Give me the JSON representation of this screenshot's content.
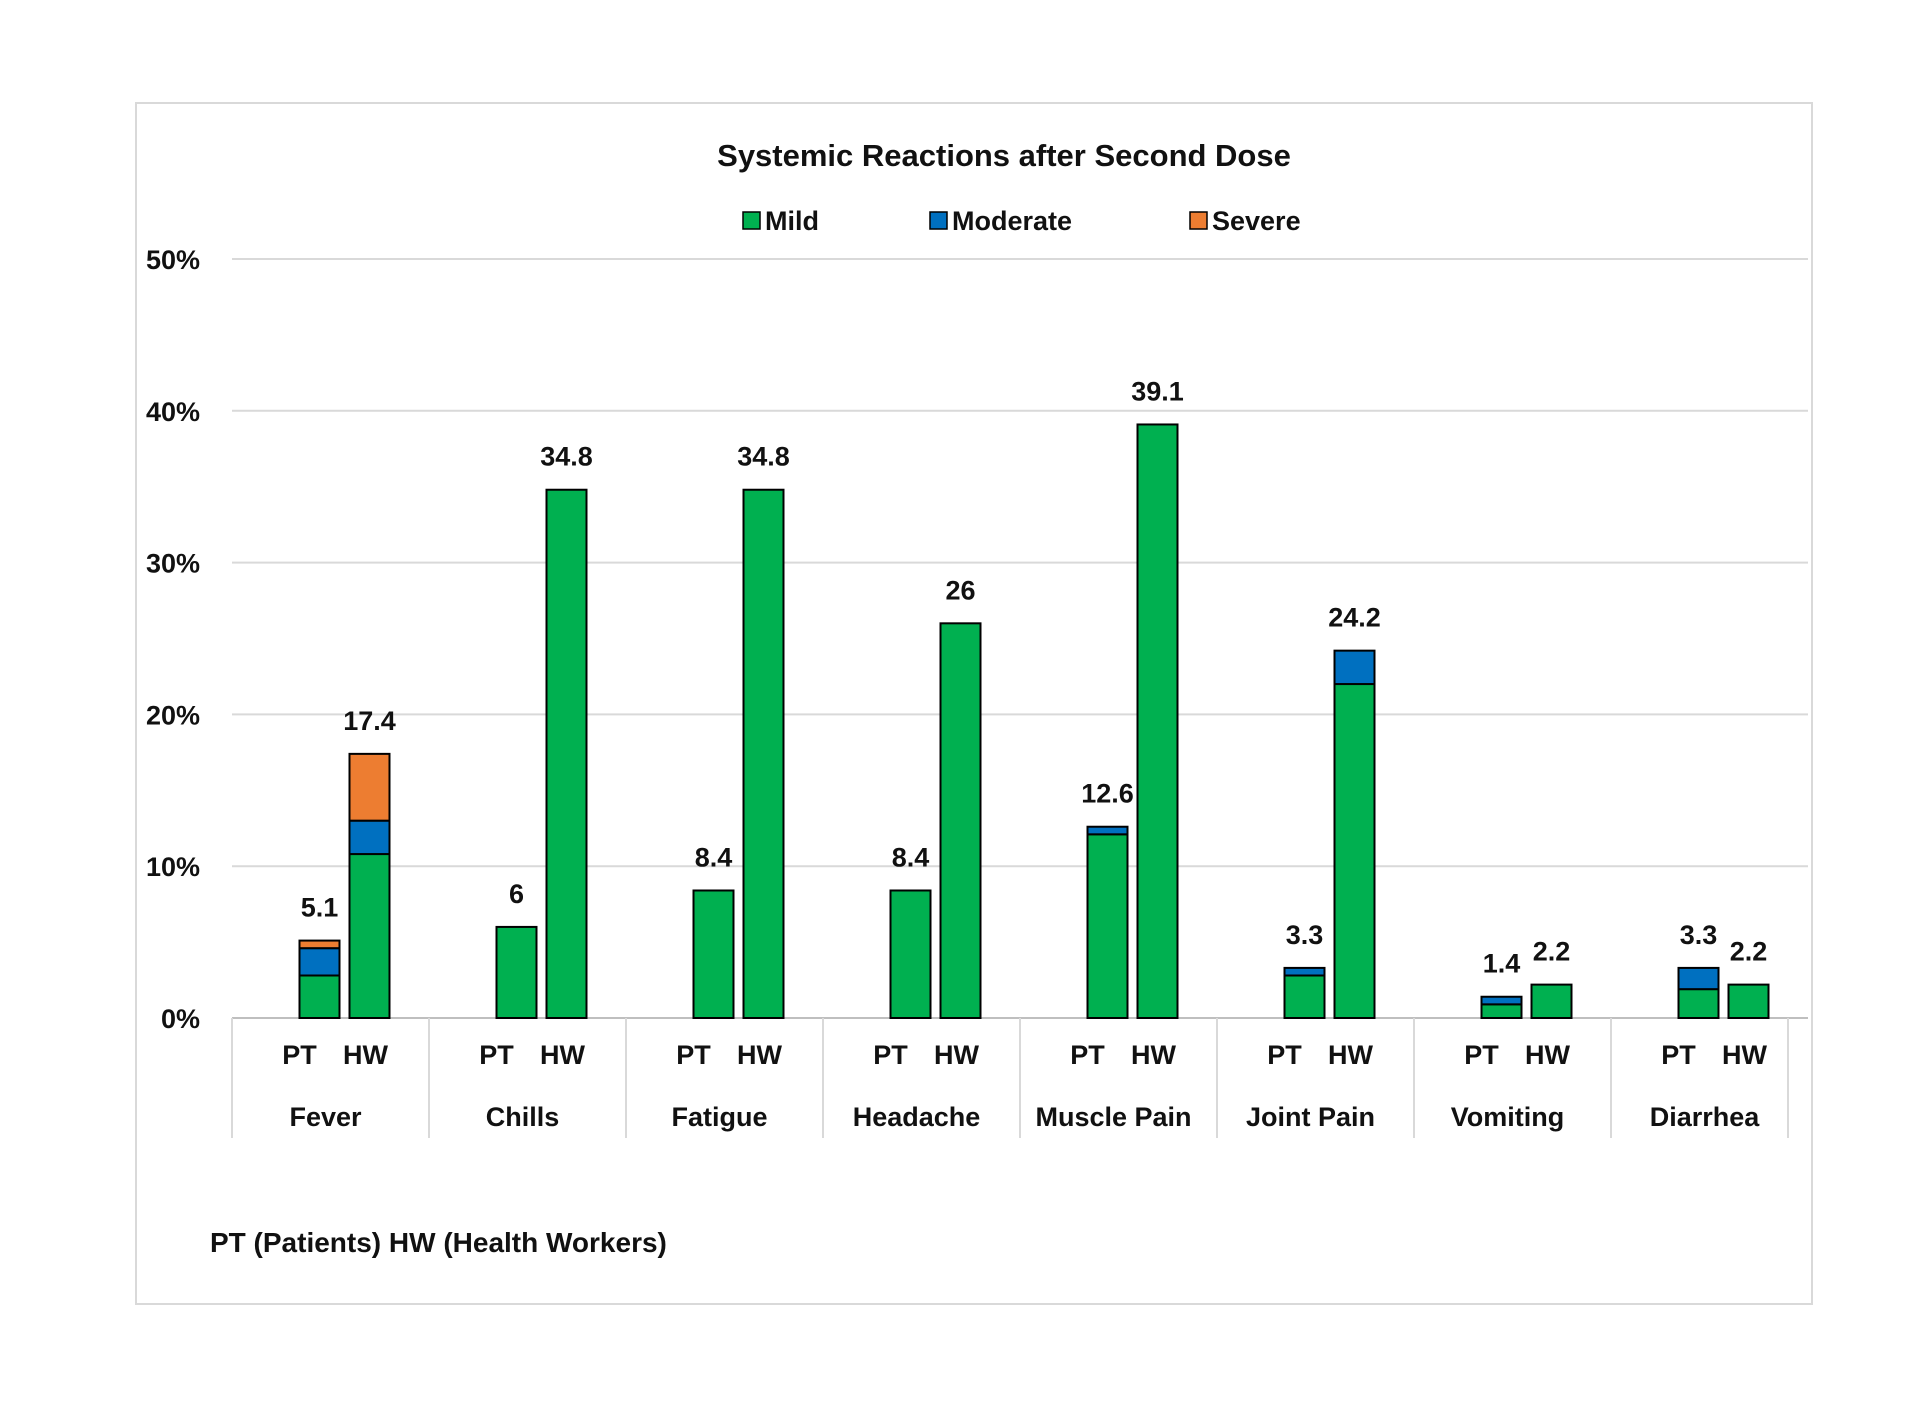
{
  "chart_data": {
    "type": "bar",
    "stacked": true,
    "title": "Systemic Reactions after Second Dose",
    "legend": {
      "placement": "top-center",
      "items": [
        {
          "name": "Mild",
          "color": "#00b050"
        },
        {
          "name": "Moderate",
          "color": "#0070c0"
        },
        {
          "name": "Severe",
          "color": "#ed7d31"
        }
      ]
    },
    "y_axis": {
      "ylim": [
        0,
        50
      ],
      "ticks": [
        0,
        10,
        20,
        30,
        40,
        50
      ],
      "tick_labels": [
        "0%",
        "10%",
        "20%",
        "30%",
        "40%",
        "50%"
      ],
      "grid": true
    },
    "categories": [
      "Fever",
      "Chills",
      "Fatigue",
      "Headache",
      "Muscle Pain",
      "Joint Pain",
      "Vomiting",
      "Diarrhea"
    ],
    "subcategories": [
      "PT",
      "HW"
    ],
    "groups": [
      {
        "category": "Fever",
        "bars": [
          {
            "sub": "PT",
            "mild": 2.8,
            "moderate": 1.8,
            "severe": 0.5,
            "total_label": "5.1"
          },
          {
            "sub": "HW",
            "mild": 10.8,
            "moderate": 2.2,
            "severe": 4.4,
            "total_label": "17.4"
          }
        ]
      },
      {
        "category": "Chills",
        "bars": [
          {
            "sub": "PT",
            "mild": 6.0,
            "moderate": 0,
            "severe": 0,
            "total_label": "6"
          },
          {
            "sub": "HW",
            "mild": 34.8,
            "moderate": 0,
            "severe": 0,
            "total_label": "34.8"
          }
        ]
      },
      {
        "category": "Fatigue",
        "bars": [
          {
            "sub": "PT",
            "mild": 8.4,
            "moderate": 0,
            "severe": 0,
            "total_label": "8.4"
          },
          {
            "sub": "HW",
            "mild": 34.8,
            "moderate": 0,
            "severe": 0,
            "total_label": "34.8"
          }
        ]
      },
      {
        "category": "Headache",
        "bars": [
          {
            "sub": "PT",
            "mild": 8.4,
            "moderate": 0,
            "severe": 0,
            "total_label": "8.4"
          },
          {
            "sub": "HW",
            "mild": 26.0,
            "moderate": 0,
            "severe": 0,
            "total_label": "26"
          }
        ]
      },
      {
        "category": "Muscle Pain",
        "bars": [
          {
            "sub": "PT",
            "mild": 12.1,
            "moderate": 0.5,
            "severe": 0,
            "total_label": "12.6"
          },
          {
            "sub": "HW",
            "mild": 39.1,
            "moderate": 0,
            "severe": 0,
            "total_label": "39.1"
          }
        ]
      },
      {
        "category": "Joint Pain",
        "bars": [
          {
            "sub": "PT",
            "mild": 2.8,
            "moderate": 0.5,
            "severe": 0,
            "total_label": "3.3"
          },
          {
            "sub": "HW",
            "mild": 22.0,
            "moderate": 2.2,
            "severe": 0,
            "total_label": "24.2"
          }
        ]
      },
      {
        "category": "Vomiting",
        "bars": [
          {
            "sub": "PT",
            "mild": 0.9,
            "moderate": 0.5,
            "severe": 0,
            "total_label": "1.4"
          },
          {
            "sub": "HW",
            "mild": 2.2,
            "moderate": 0,
            "severe": 0,
            "total_label": "2.2"
          }
        ]
      },
      {
        "category": "Diarrhea",
        "bars": [
          {
            "sub": "PT",
            "mild": 1.9,
            "moderate": 1.4,
            "severe": 0,
            "total_label": "3.3"
          },
          {
            "sub": "HW",
            "mild": 2.2,
            "moderate": 0,
            "severe": 0,
            "total_label": "2.2"
          }
        ]
      }
    ],
    "footnote": "PT (Patients)  HW (Health Workers)"
  }
}
